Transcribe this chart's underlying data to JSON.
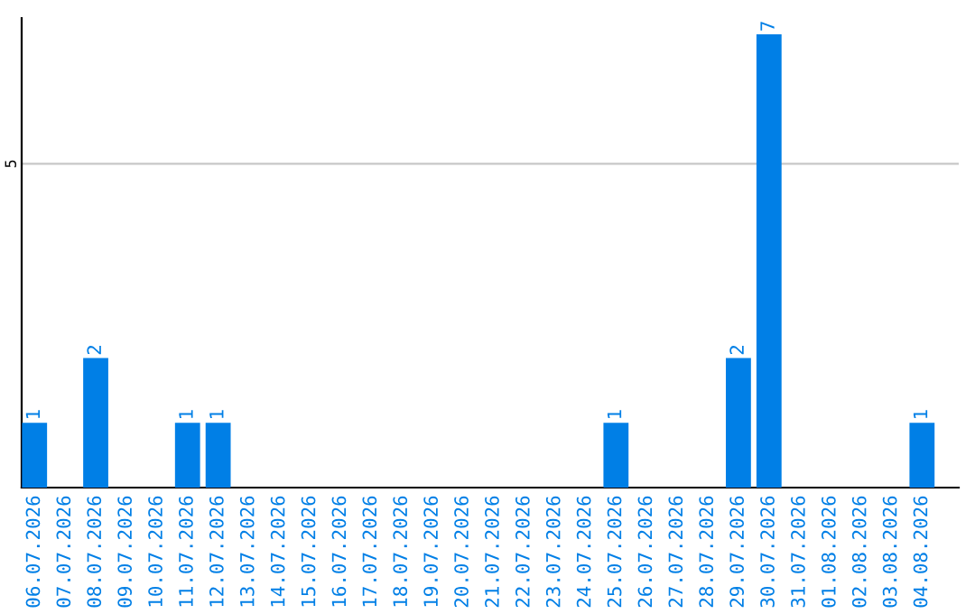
{
  "chart_data": {
    "type": "bar",
    "categories": [
      "06.07.2026",
      "07.07.2026",
      "08.07.2026",
      "09.07.2026",
      "10.07.2026",
      "11.07.2026",
      "12.07.2026",
      "13.07.2026",
      "14.07.2026",
      "15.07.2026",
      "16.07.2026",
      "17.07.2026",
      "18.07.2026",
      "19.07.2026",
      "20.07.2026",
      "21.07.2026",
      "22.07.2026",
      "23.07.2026",
      "24.07.2026",
      "25.07.2026",
      "26.07.2026",
      "27.07.2026",
      "28.07.2026",
      "29.07.2026",
      "30.07.2026",
      "31.07.2026",
      "01.08.2026",
      "02.08.2026",
      "03.08.2026",
      "04.08.2026"
    ],
    "values": [
      1,
      0,
      2,
      0,
      0,
      1,
      1,
      0,
      0,
      0,
      0,
      0,
      0,
      0,
      0,
      0,
      0,
      0,
      0,
      1,
      0,
      0,
      0,
      2,
      7,
      0,
      0,
      0,
      0,
      1
    ],
    "value_labels": [
      "1",
      null,
      "2",
      null,
      null,
      "1",
      "1",
      null,
      null,
      null,
      null,
      null,
      null,
      null,
      null,
      null,
      null,
      null,
      null,
      "1",
      null,
      null,
      null,
      "2",
      "7",
      null,
      null,
      null,
      null,
      "1"
    ],
    "color": "#007fe6",
    "ylim": [
      0,
      7.25
    ],
    "yticks": [
      5
    ],
    "grid": "y"
  }
}
